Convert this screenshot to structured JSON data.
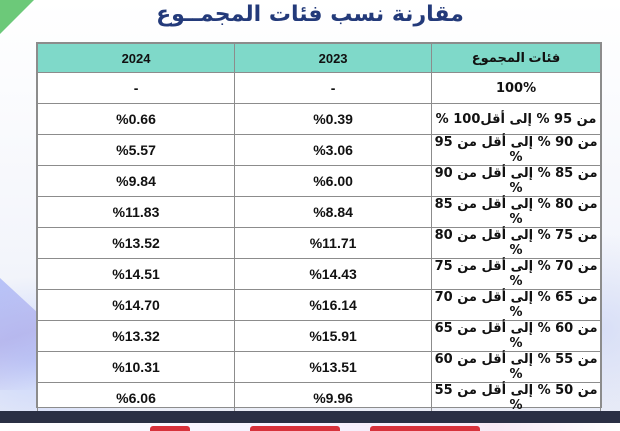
{
  "title": "مقارنة نسب فئات المجمــوع",
  "table": {
    "headers": {
      "col_2024": "2024",
      "col_2023": "2023",
      "col_category": "فئات المجموع"
    },
    "rows": [
      {
        "category": "100%",
        "y2023": "-",
        "y2024": "-"
      },
      {
        "category": "من 95 % إلى أقل100 %",
        "y2023": "%0.39",
        "y2024": "%0.66"
      },
      {
        "category": "من 90 % إلى أقل من 95 %",
        "y2023": "%3.06",
        "y2024": "%5.57"
      },
      {
        "category": "من 85 % إلى أقل من 90 %",
        "y2023": "%6.00",
        "y2024": "%9.84"
      },
      {
        "category": "من 80 % إلى أقل من 85 %",
        "y2023": "%8.84",
        "y2024": "%11.83"
      },
      {
        "category": "من 75 % إلى أقل من 80 %",
        "y2023": "%11.71",
        "y2024": "%13.52"
      },
      {
        "category": "من 70 % إلى أقل من 75 %",
        "y2023": "%14.43",
        "y2024": "%14.51"
      },
      {
        "category": "من 65 % إلى أقل من 70 %",
        "y2023": "%16.14",
        "y2024": "%14.70"
      },
      {
        "category": "من 60 % إلى أقل من 65 %",
        "y2023": "%15.91",
        "y2024": "%13.32"
      },
      {
        "category": "من 55 % إلى أقل من 60 %",
        "y2023": "%13.51",
        "y2024": "%10.31"
      },
      {
        "category": "من 50 % إلى أقل من 55 %",
        "y2023": "%9.96",
        "y2024": "%6.06"
      }
    ]
  },
  "colors": {
    "header_bg": "#7fd9c9",
    "title": "#233a7a",
    "border": "#8c8c8c"
  }
}
